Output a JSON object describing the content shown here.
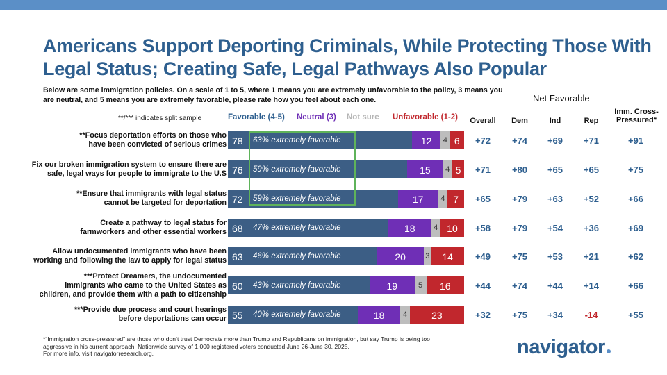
{
  "title": "Americans Support Deporting Criminals, While Protecting Those With Legal Status; Creating Safe, Legal Pathways Also Popular",
  "question": "Below are some immigration policies. On a scale of 1 to 5, where 1 means you are extremely unfavorable to the policy, 3 means you are neutral, and 5 means you are extremely favorable, please rate how you feel about each one.",
  "split_note": "**/*** indicates split sample",
  "legend": {
    "favorable": "Favorable (4-5)",
    "neutral": "Neutral (3)",
    "not_sure": "Not sure",
    "unfavorable": "Unfavorable (1-2)"
  },
  "net_header": "Net Favorable",
  "columns": {
    "overall": "Overall",
    "dem": "Dem",
    "ind": "Ind",
    "rep": "Rep",
    "imm_line1": "Imm. Cross-",
    "imm_line2": "Pressured*"
  },
  "colors": {
    "favorable": "#3c5e85",
    "neutral": "#6f2fb6",
    "not_sure": "#bdbdbd",
    "unfavorable": "#c1272d",
    "title": "#2e5f8f",
    "highlight": "#5fb35a"
  },
  "chart_data": {
    "type": "bar",
    "stacked": true,
    "orientation": "horizontal",
    "series": [
      {
        "name": "Favorable (4-5)",
        "values": [
          78,
          76,
          72,
          68,
          63,
          60,
          55
        ]
      },
      {
        "name": "Neutral (3)",
        "values": [
          12,
          15,
          17,
          18,
          20,
          19,
          18
        ]
      },
      {
        "name": "Not sure",
        "values": [
          4,
          4,
          4,
          4,
          3,
          5,
          4
        ]
      },
      {
        "name": "Unfavorable (1-2)",
        "values": [
          6,
          5,
          7,
          10,
          14,
          16,
          23
        ]
      }
    ],
    "rows": [
      {
        "label": [
          "**Focus deportation efforts on those who",
          "have been convicted of serious crimes"
        ],
        "fav": 78,
        "extreme": "63% extremely favorable",
        "neu": 12,
        "ns": 4,
        "unf": 6,
        "net": [
          "+72",
          "+74",
          "+69",
          "+71",
          "+91"
        ]
      },
      {
        "label": [
          "Fix our broken immigration system to ensure there are",
          "safe, legal ways for people to immigrate to the U.S"
        ],
        "fav": 76,
        "extreme": "59% extremely favorable",
        "neu": 15,
        "ns": 4,
        "unf": 5,
        "net": [
          "+71",
          "+80",
          "+65",
          "+65",
          "+75"
        ]
      },
      {
        "label": [
          "**Ensure that immigrants with legal status",
          "cannot be targeted for deportation"
        ],
        "fav": 72,
        "extreme": "59% extremely favorable",
        "neu": 17,
        "ns": 4,
        "unf": 7,
        "net": [
          "+65",
          "+79",
          "+63",
          "+52",
          "+66"
        ]
      },
      {
        "label": [
          "Create a pathway to legal status for",
          "farmworkers and other essential workers"
        ],
        "fav": 68,
        "extreme": "47% extremely favorable",
        "neu": 18,
        "ns": 4,
        "unf": 10,
        "net": [
          "+58",
          "+79",
          "+54",
          "+36",
          "+69"
        ]
      },
      {
        "label": [
          "Allow undocumented immigrants who have been",
          "working and following the law to apply for legal status"
        ],
        "fav": 63,
        "extreme": "46% extremely favorable",
        "neu": 20,
        "ns": 3,
        "unf": 14,
        "net": [
          "+49",
          "+75",
          "+53",
          "+21",
          "+62"
        ]
      },
      {
        "label": [
          "***Protect Dreamers, the undocumented",
          "immigrants who came to the United States as",
          "children, and provide them with a path to citizenship"
        ],
        "fav": 60,
        "extreme": "43% extremely favorable",
        "neu": 19,
        "ns": 5,
        "unf": 16,
        "net": [
          "+44",
          "+74",
          "+44",
          "+14",
          "+66"
        ]
      },
      {
        "label": [
          "***Provide due process and court hearings",
          "before deportations can occur"
        ],
        "fav": 55,
        "extreme": "40% extremely favorable",
        "neu": 18,
        "ns": 4,
        "unf": 23,
        "net": [
          "+32",
          "+75",
          "+34",
          "-14",
          "+55"
        ]
      }
    ]
  },
  "footnote": [
    "*“Immigration cross-pressured” are those who don’t trust Democrats more than Trump and Republicans on immigration, but say Trump is being too",
    "aggressive in his current approach. Nationwide survey of 1,000 registered voters conducted June 26-June 30, 2025.",
    "For more info, visit navigatorresearch.org."
  ],
  "logo": "navigator"
}
